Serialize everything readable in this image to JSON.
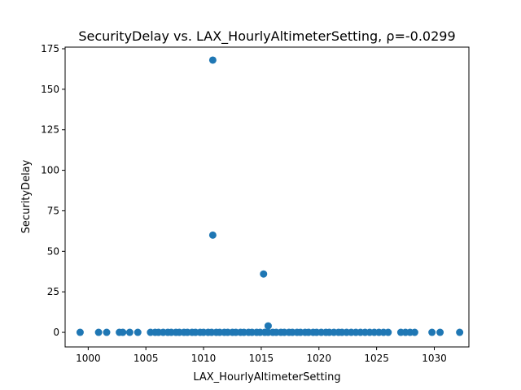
{
  "chart_data": {
    "type": "scatter",
    "title": "SecurityDelay vs. LAX_HourlyAltimeterSetting, ρ=-0.0299",
    "xlabel": "LAX_HourlyAltimeterSetting",
    "ylabel": "SecurityDelay",
    "xlim": [
      998,
      1033
    ],
    "ylim": [
      -9,
      176
    ],
    "xticks": [
      1000,
      1005,
      1010,
      1015,
      1020,
      1025,
      1030
    ],
    "yticks": [
      0,
      25,
      50,
      75,
      100,
      125,
      150,
      175
    ],
    "grid": false,
    "legend": "none",
    "marker_color": "#1f77b4",
    "points": [
      [
        1010.8,
        168
      ],
      [
        1010.8,
        60
      ],
      [
        1015.2,
        36
      ],
      [
        1015.6,
        4
      ],
      [
        999.3,
        0
      ],
      [
        1000.9,
        0
      ],
      [
        1001.6,
        0
      ],
      [
        1002.7,
        0
      ],
      [
        1003.0,
        0
      ],
      [
        1003.6,
        0
      ],
      [
        1004.3,
        0
      ],
      [
        1005.4,
        0
      ],
      [
        1005.8,
        0
      ],
      [
        1006.1,
        0
      ],
      [
        1006.5,
        0
      ],
      [
        1006.9,
        0
      ],
      [
        1007.2,
        0
      ],
      [
        1007.6,
        0
      ],
      [
        1007.9,
        0
      ],
      [
        1008.3,
        0
      ],
      [
        1008.6,
        0
      ],
      [
        1009.0,
        0
      ],
      [
        1009.3,
        0
      ],
      [
        1009.7,
        0
      ],
      [
        1010.0,
        0
      ],
      [
        1010.4,
        0
      ],
      [
        1010.7,
        0
      ],
      [
        1011.1,
        0
      ],
      [
        1011.4,
        0
      ],
      [
        1011.8,
        0
      ],
      [
        1012.1,
        0
      ],
      [
        1012.5,
        0
      ],
      [
        1012.8,
        0
      ],
      [
        1013.2,
        0
      ],
      [
        1013.5,
        0
      ],
      [
        1013.9,
        0
      ],
      [
        1014.2,
        0
      ],
      [
        1014.6,
        0
      ],
      [
        1014.9,
        0
      ],
      [
        1015.3,
        0
      ],
      [
        1015.6,
        0
      ],
      [
        1016.0,
        0
      ],
      [
        1016.3,
        0
      ],
      [
        1016.7,
        0
      ],
      [
        1017.0,
        0
      ],
      [
        1017.4,
        0
      ],
      [
        1017.7,
        0
      ],
      [
        1018.1,
        0
      ],
      [
        1018.4,
        0
      ],
      [
        1018.8,
        0
      ],
      [
        1019.1,
        0
      ],
      [
        1019.5,
        0
      ],
      [
        1019.8,
        0
      ],
      [
        1020.2,
        0
      ],
      [
        1020.6,
        0
      ],
      [
        1020.9,
        0
      ],
      [
        1021.3,
        0
      ],
      [
        1021.7,
        0
      ],
      [
        1022.0,
        0
      ],
      [
        1022.4,
        0
      ],
      [
        1022.8,
        0
      ],
      [
        1023.2,
        0
      ],
      [
        1023.6,
        0
      ],
      [
        1024.0,
        0
      ],
      [
        1024.4,
        0
      ],
      [
        1024.8,
        0
      ],
      [
        1025.2,
        0
      ],
      [
        1025.6,
        0
      ],
      [
        1026.0,
        0
      ],
      [
        1027.1,
        0
      ],
      [
        1027.5,
        0
      ],
      [
        1027.9,
        0
      ],
      [
        1028.3,
        0
      ],
      [
        1029.8,
        0
      ],
      [
        1030.5,
        0
      ],
      [
        1032.2,
        0
      ]
    ]
  }
}
